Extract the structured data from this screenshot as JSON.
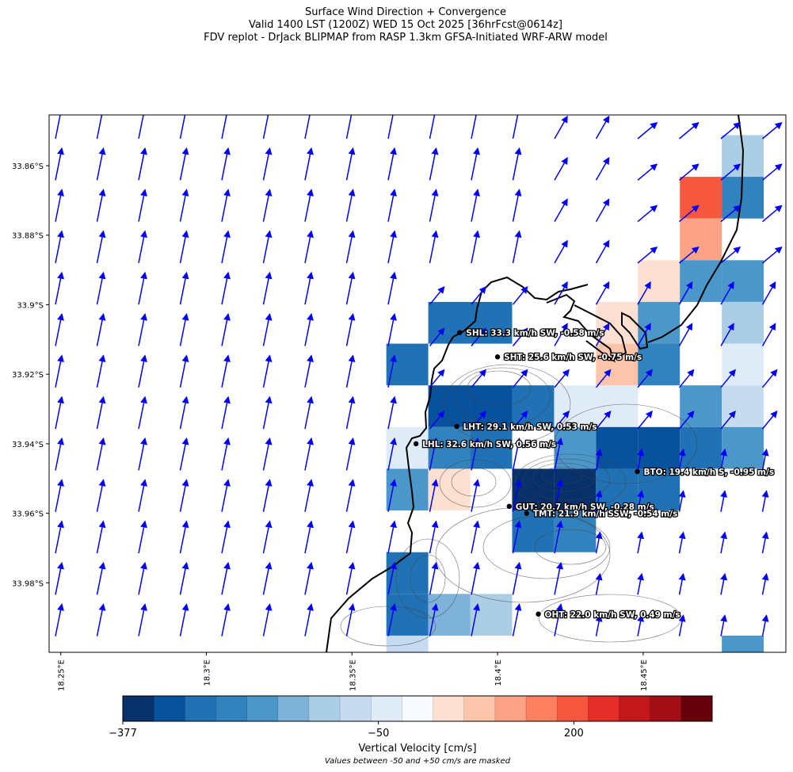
{
  "title": {
    "line1": "Surface Wind Direction + Convergence",
    "line2": "Valid 1400 LST (1200Z) WED 15 Oct 2025 [36hrFcst@0614z]",
    "line3": "FDV replot - DrJack BLIPMAP from RASP 1.3km GFSA-Initiated WRF-ARW model"
  },
  "map": {
    "lon_range": [
      18.246,
      18.499
    ],
    "lat_range": [
      34.0,
      33.8454
    ],
    "lat_ticks": [
      {
        "value": 33.86,
        "label": "33.86°S"
      },
      {
        "value": 33.88,
        "label": "33.88°S"
      },
      {
        "value": 33.9,
        "label": "33.9°S"
      },
      {
        "value": 33.92,
        "label": "33.92°S"
      },
      {
        "value": 33.94,
        "label": "33.94°S"
      },
      {
        "value": 33.96,
        "label": "33.96°S"
      },
      {
        "value": 33.98,
        "label": "33.98°S"
      }
    ],
    "lon_ticks": [
      {
        "value": 18.25,
        "label": "18.25°E"
      },
      {
        "value": 18.3,
        "label": "18.3°E"
      },
      {
        "value": 18.35,
        "label": "18.35°E"
      },
      {
        "value": 18.4,
        "label": "18.4°E"
      },
      {
        "value": 18.45,
        "label": "18.45°E"
      }
    ],
    "wind_arrow_color": "#0000ff",
    "coast_color": "#000000",
    "stations": [
      {
        "code": "SHL",
        "label": "SHL: 33.3 km/h SW, -0.58 m/s",
        "lon": 18.387,
        "lat": 33.908
      },
      {
        "code": "SHT",
        "label": "SHT: 25.6 km/h SW, -0.75 m/s",
        "lon": 18.4,
        "lat": 33.915
      },
      {
        "code": "LHT",
        "label": "LHT: 29.1 km/h SW, 0.53 m/s",
        "lon": 18.386,
        "lat": 33.935
      },
      {
        "code": "LHL",
        "label": "LHL: 32.6 km/h SW, 0.56 m/s",
        "lon": 18.372,
        "lat": 33.94
      },
      {
        "code": "BTO",
        "label": "BTO: 19.4 km/h S, -0.95 m/s",
        "lon": 18.448,
        "lat": 33.948
      },
      {
        "code": "GUT",
        "label": "GUT: 20.7 km/h SW, -0.28 m/s",
        "lon": 18.404,
        "lat": 33.958
      },
      {
        "code": "TMT",
        "label": "TMT: 21.9 km/h SSW, -0.54 m/s",
        "lon": 18.41,
        "lat": 33.96
      },
      {
        "code": "OHT",
        "label": "OHT: 22.0 km/h SW, 0.49 m/s",
        "lon": 18.414,
        "lat": 33.989
      }
    ],
    "velocity_cells": [
      {
        "lon": 18.4842,
        "lat": 33.8572,
        "level": 6
      },
      {
        "lon": 18.4842,
        "lat": 33.8692,
        "level": 3
      },
      {
        "lon": 18.4698,
        "lat": 33.8692,
        "level": 14
      },
      {
        "lon": 18.4698,
        "lat": 33.8812,
        "level": 12
      },
      {
        "lon": 18.4554,
        "lat": 33.8932,
        "level": 10
      },
      {
        "lon": 18.4698,
        "lat": 33.8932,
        "level": 4
      },
      {
        "lon": 18.4842,
        "lat": 33.8932,
        "level": 4
      },
      {
        "lon": 18.441,
        "lat": 33.9052,
        "level": 10
      },
      {
        "lon": 18.4554,
        "lat": 33.9052,
        "level": 4
      },
      {
        "lon": 18.4842,
        "lat": 33.9052,
        "level": 6
      },
      {
        "lon": 18.441,
        "lat": 33.9172,
        "level": 11
      },
      {
        "lon": 18.4554,
        "lat": 33.9172,
        "level": 3
      },
      {
        "lon": 18.4842,
        "lat": 33.9172,
        "level": 8
      },
      {
        "lon": 18.4266,
        "lat": 33.9292,
        "level": 8
      },
      {
        "lon": 18.441,
        "lat": 33.9292,
        "level": 8
      },
      {
        "lon": 18.4698,
        "lat": 33.9292,
        "level": 4
      },
      {
        "lon": 18.4842,
        "lat": 33.9292,
        "level": 7
      },
      {
        "lon": 18.369,
        "lat": 33.9172,
        "level": 2
      },
      {
        "lon": 18.3834,
        "lat": 33.9052,
        "level": 2
      },
      {
        "lon": 18.3978,
        "lat": 33.9052,
        "level": 2
      },
      {
        "lon": 18.3834,
        "lat": 33.9292,
        "level": 1
      },
      {
        "lon": 18.3978,
        "lat": 33.9292,
        "level": 1
      },
      {
        "lon": 18.4122,
        "lat": 33.9292,
        "level": 2
      },
      {
        "lon": 18.369,
        "lat": 33.9412,
        "level": 8
      },
      {
        "lon": 18.3834,
        "lat": 33.9412,
        "level": 3
      },
      {
        "lon": 18.3978,
        "lat": 33.9412,
        "level": 2
      },
      {
        "lon": 18.4266,
        "lat": 33.9412,
        "level": 4
      },
      {
        "lon": 18.441,
        "lat": 33.9412,
        "level": 1
      },
      {
        "lon": 18.4554,
        "lat": 33.9412,
        "level": 1
      },
      {
        "lon": 18.4698,
        "lat": 33.9412,
        "level": 2
      },
      {
        "lon": 18.4842,
        "lat": 33.9412,
        "level": 4
      },
      {
        "lon": 18.369,
        "lat": 33.9532,
        "level": 4
      },
      {
        "lon": 18.3834,
        "lat": 33.9532,
        "level": 10
      },
      {
        "lon": 18.4122,
        "lat": 33.9532,
        "level": 0
      },
      {
        "lon": 18.4266,
        "lat": 33.9532,
        "level": 0
      },
      {
        "lon": 18.441,
        "lat": 33.9532,
        "level": 2
      },
      {
        "lon": 18.4554,
        "lat": 33.9532,
        "level": 2
      },
      {
        "lon": 18.4122,
        "lat": 33.9652,
        "level": 2
      },
      {
        "lon": 18.4266,
        "lat": 33.9652,
        "level": 3
      },
      {
        "lon": 18.369,
        "lat": 33.9772,
        "level": 2
      },
      {
        "lon": 18.369,
        "lat": 33.9892,
        "level": 2
      },
      {
        "lon": 18.3834,
        "lat": 33.9892,
        "level": 5
      },
      {
        "lon": 18.3978,
        "lat": 33.9892,
        "level": 6
      },
      {
        "lon": 18.369,
        "lat": 34.0012,
        "level": 7
      },
      {
        "lon": 18.4842,
        "lat": 34.0012,
        "level": 4
      }
    ]
  },
  "colorbar": {
    "label": "Vertical Velocity [cm/s]",
    "note": "Values between -50 and +50 cm/s are masked",
    "ticks": [
      {
        "value": -377,
        "label": "−377"
      },
      {
        "value": -50,
        "label": "−50"
      },
      {
        "value": 200,
        "label": "200"
      }
    ],
    "min": -377,
    "max": 377,
    "colors": [
      "#08306b",
      "#08519c",
      "#2171b5",
      "#3182bd",
      "#4b97c9",
      "#7fb2d8",
      "#aacfe5",
      "#c6dbef",
      "#dfebf7",
      "#f7fbff",
      "#fee0d2",
      "#fcc4ab",
      "#fca386",
      "#fc7f5f",
      "#f5583f",
      "#e32f27",
      "#c2181c",
      "#a10e15",
      "#67000d"
    ]
  }
}
